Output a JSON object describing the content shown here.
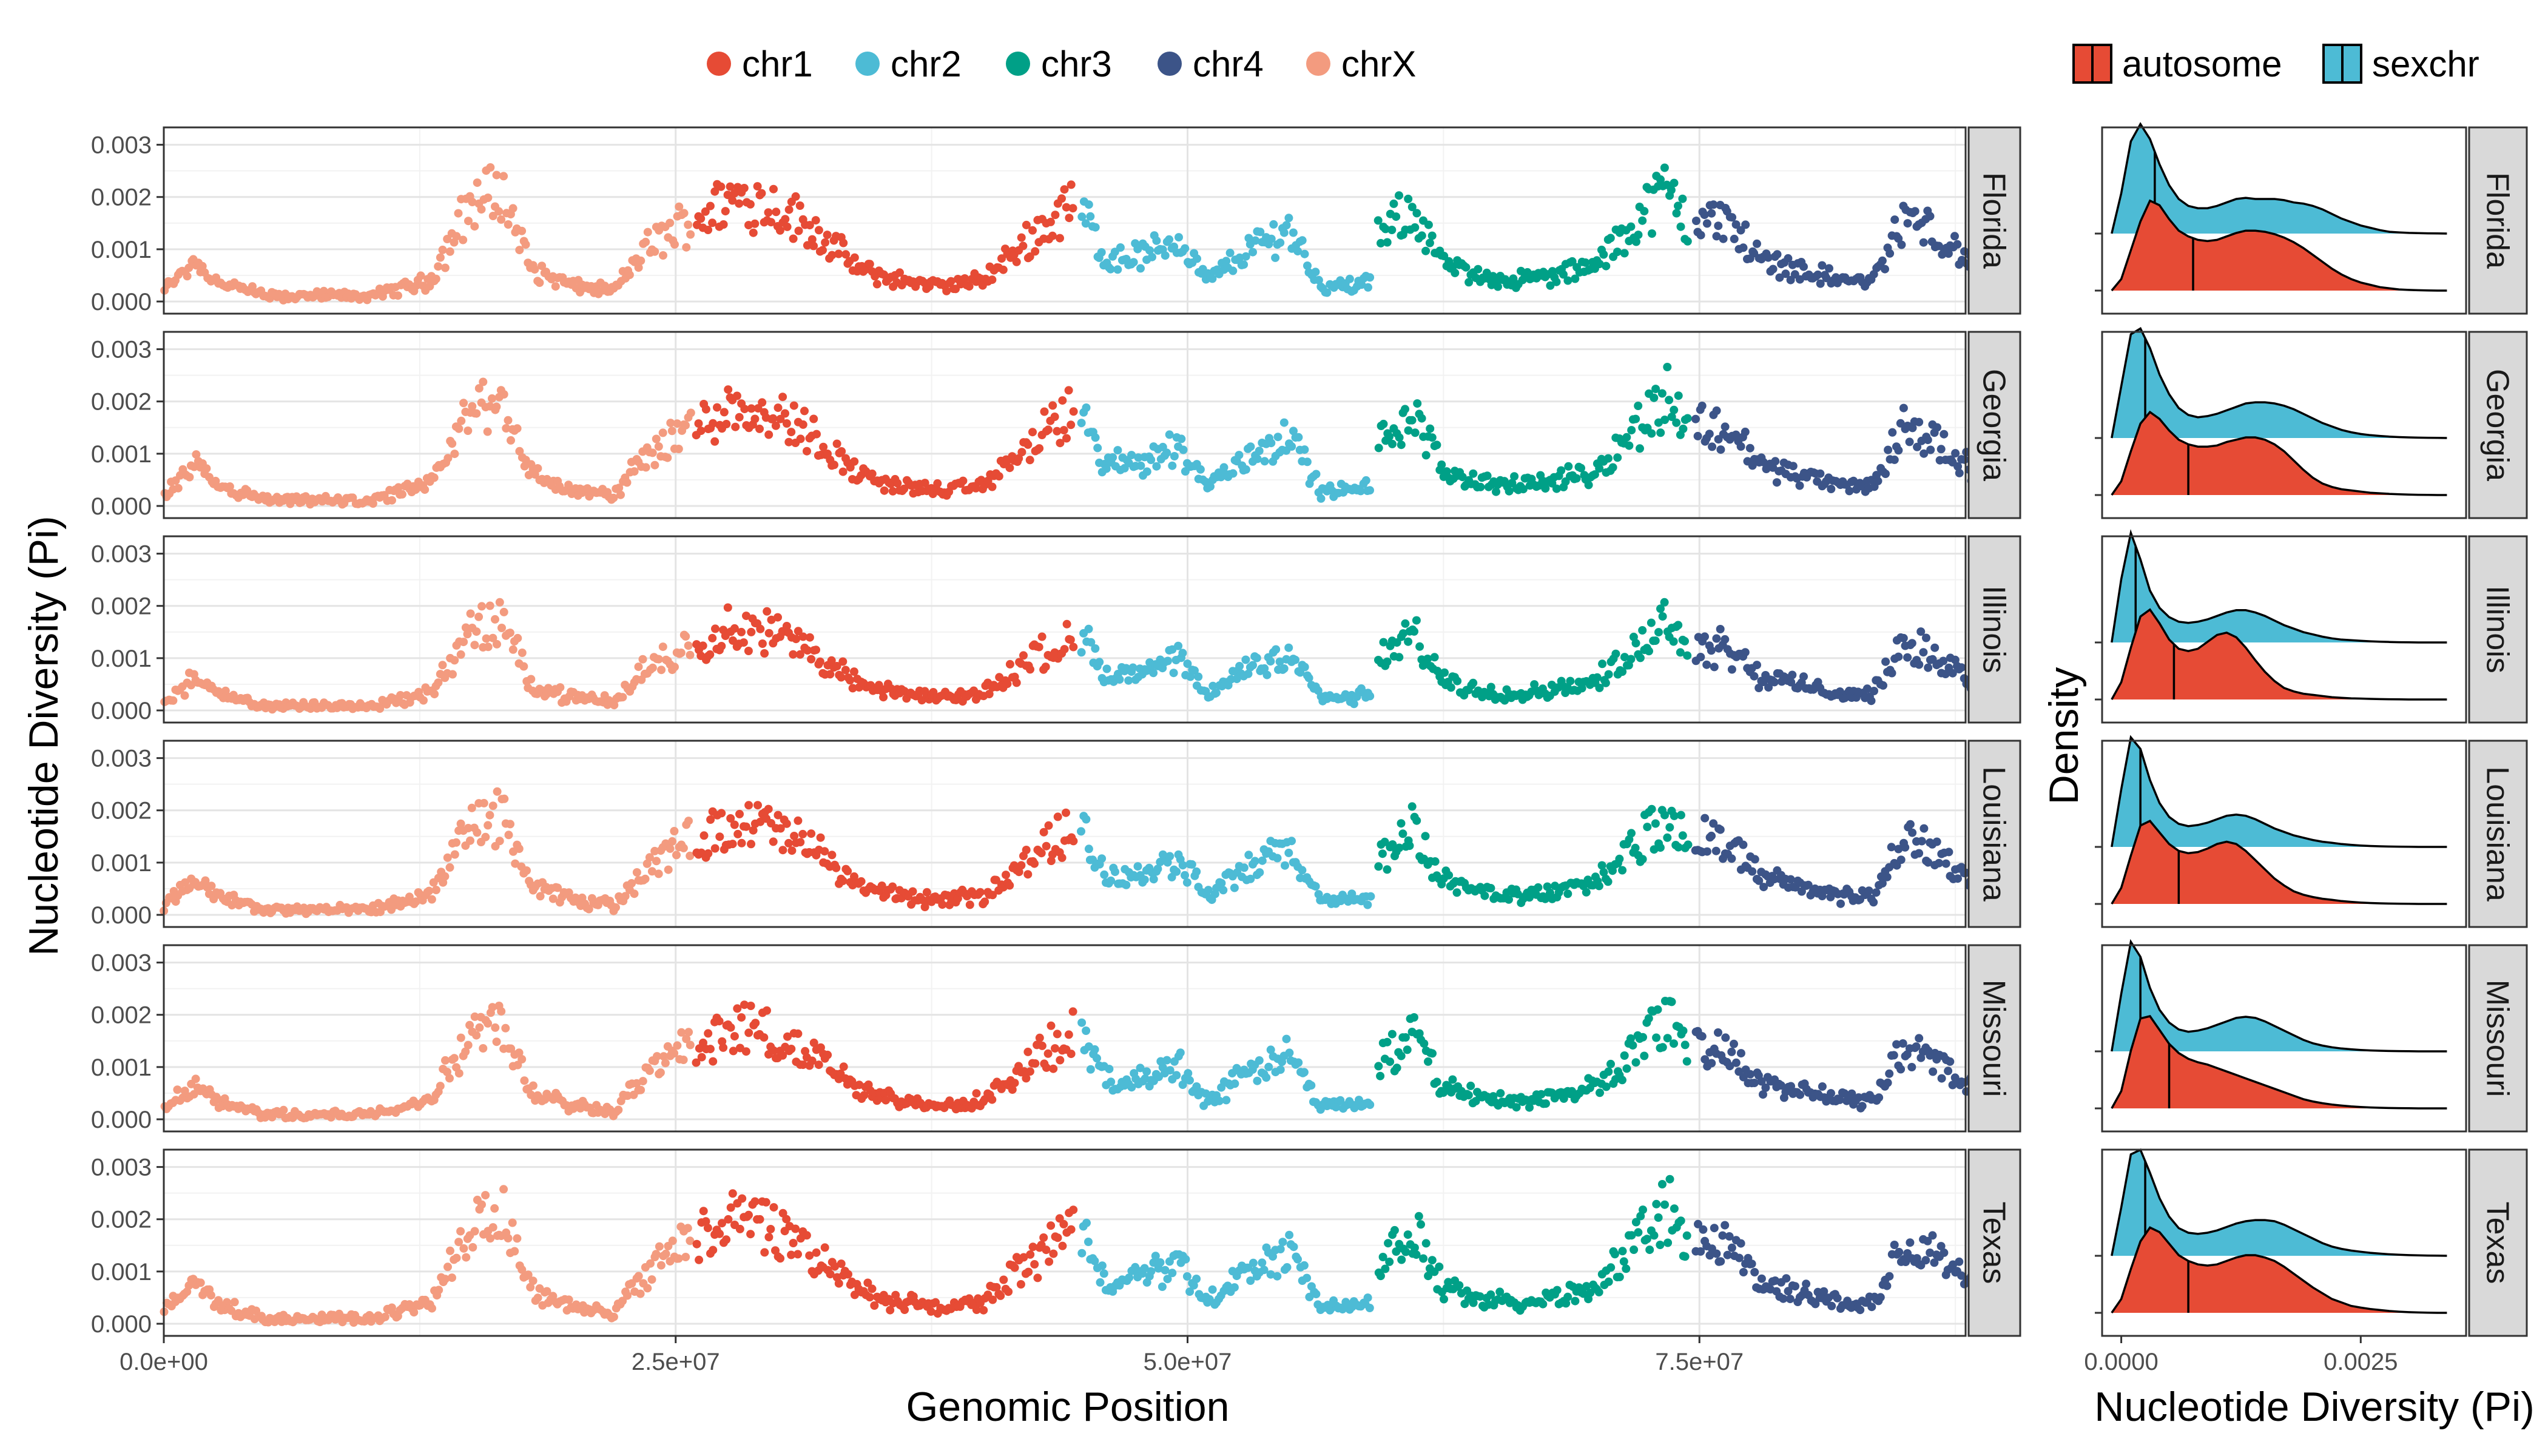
{
  "chart_data": [
    {
      "type": "scatter",
      "xlabel": "Genomic Position",
      "ylabel": "Nucleotide Diversity (Pi)",
      "xlim": [
        0,
        88000000
      ],
      "ylim": [
        0,
        0.0031
      ],
      "x_ticks": [
        0,
        25000000,
        50000000,
        75000000
      ],
      "x_tick_labels": [
        "0.0e+00",
        "2.5e+07",
        "5.0e+07",
        "7.5e+07"
      ],
      "y_ticks": [
        0,
        0.001,
        0.002,
        0.003
      ],
      "y_tick_labels": [
        "0.000",
        "0.001",
        "0.002",
        "0.003"
      ],
      "grid": true,
      "legend_position": "top",
      "facets": [
        "Florida",
        "Georgia",
        "Illinois",
        "Louisiana",
        "Missouri",
        "Texas"
      ],
      "facet_scale": [
        1.0,
        0.97,
        0.8,
        0.9,
        0.88,
        1.0
      ],
      "series": [
        {
          "name": "chrX",
          "color": "#f39b7f",
          "x_range": [
            0,
            25800000
          ],
          "x": [
            0,
            1500000,
            2500000,
            5000000,
            10000000,
            12000000,
            13000000,
            15000000,
            16500000,
            18000000,
            20000000,
            22000000,
            23500000,
            25800000
          ],
          "y": [
            0.0002,
            0.0008,
            0.0004,
            0.0001,
            0.0001,
            0.0003,
            0.0004,
            0.0019,
            0.0021,
            0.0006,
            0.0003,
            0.0002,
            0.001,
            0.0016
          ]
        },
        {
          "name": "chr1",
          "color": "#e64b35",
          "x_range": [
            26000000,
            44500000
          ],
          "x": [
            26000000,
            28000000,
            30000000,
            32000000,
            34000000,
            36000000,
            38000000,
            40000000,
            42000000,
            44500000
          ],
          "y": [
            0.0016,
            0.002,
            0.0018,
            0.0013,
            0.0006,
            0.0004,
            0.0003,
            0.0004,
            0.0011,
            0.0019
          ]
        },
        {
          "name": "chr2",
          "color": "#4dbbd5",
          "x_range": [
            44800000,
            59000000
          ],
          "x": [
            44800000,
            46000000,
            48000000,
            49500000,
            51000000,
            53000000,
            55000000,
            56500000,
            58000000,
            59000000
          ],
          "y": [
            0.0018,
            0.0008,
            0.0009,
            0.0012,
            0.0004,
            0.001,
            0.0014,
            0.0003,
            0.0003,
            0.0004
          ]
        },
        {
          "name": "chr3",
          "color": "#00a087",
          "x_range": [
            59300000,
            74500000
          ],
          "x": [
            59300000,
            61000000,
            62500000,
            64000000,
            66000000,
            68000000,
            70000000,
            72000000,
            73500000,
            74500000
          ],
          "y": [
            0.0012,
            0.0018,
            0.0007,
            0.0005,
            0.0004,
            0.0005,
            0.0007,
            0.0016,
            0.0022,
            0.0014
          ]
        },
        {
          "name": "chr4",
          "color": "#3c5488",
          "x_range": [
            74800000,
            89000000
          ],
          "x": [
            74800000,
            76500000,
            78000000,
            80000000,
            82000000,
            83500000,
            85000000,
            86500000,
            88000000,
            89000000
          ],
          "y": [
            0.0016,
            0.0015,
            0.0008,
            0.0006,
            0.0004,
            0.0004,
            0.0016,
            0.0013,
            0.0008,
            0.0005
          ]
        }
      ]
    },
    {
      "type": "area",
      "subtype": "density-ridgeline",
      "xlabel": "Nucleotide Diversity (Pi)",
      "ylabel": "Density",
      "xlim": [
        -0.0002,
        0.0036
      ],
      "x_ticks": [
        0,
        0.0025
      ],
      "x_tick_labels": [
        "0.0000",
        "0.0025"
      ],
      "grid": false,
      "legend_position": "top-right",
      "facets": [
        "Florida",
        "Georgia",
        "Illinois",
        "Louisiana",
        "Missouri",
        "Texas"
      ],
      "x": [
        -0.0001,
        0.0,
        0.0001,
        0.0002,
        0.0003,
        0.0004,
        0.0005,
        0.0006,
        0.0007,
        0.0008,
        0.0009,
        0.001,
        0.0011,
        0.0012,
        0.0013,
        0.0014,
        0.0015,
        0.0016,
        0.0017,
        0.0018,
        0.0019,
        0.002,
        0.0021,
        0.0022,
        0.0023,
        0.0024,
        0.0025,
        0.0026,
        0.0027,
        0.0028,
        0.0029,
        0.003,
        0.0031,
        0.0032,
        0.0033,
        0.0034
      ],
      "series": [
        {
          "name": "sexchr",
          "color": "#4dbbd5",
          "facet": "Florida",
          "median": 0.00035,
          "values": [
            0,
            0.35,
            0.8,
            0.95,
            0.82,
            0.6,
            0.42,
            0.3,
            0.24,
            0.22,
            0.22,
            0.24,
            0.27,
            0.3,
            0.31,
            0.3,
            0.3,
            0.3,
            0.29,
            0.27,
            0.26,
            0.24,
            0.21,
            0.17,
            0.13,
            0.1,
            0.07,
            0.05,
            0.03,
            0.015,
            0.01,
            0.006,
            0.004,
            0.002,
            0.001,
            0
          ]
        },
        {
          "name": "autosome",
          "color": "#e64b35",
          "facet": "Florida",
          "median": 0.00075,
          "values": [
            0,
            0.1,
            0.35,
            0.6,
            0.78,
            0.74,
            0.62,
            0.52,
            0.47,
            0.44,
            0.43,
            0.44,
            0.47,
            0.5,
            0.52,
            0.52,
            0.51,
            0.49,
            0.46,
            0.42,
            0.37,
            0.31,
            0.25,
            0.19,
            0.14,
            0.1,
            0.07,
            0.05,
            0.03,
            0.02,
            0.01,
            0.006,
            0.003,
            0.001,
            0,
            0
          ]
        },
        {
          "name": "sexchr",
          "color": "#4dbbd5",
          "facet": "Georgia",
          "median": 0.00025,
          "values": [
            0,
            0.45,
            0.9,
            0.95,
            0.78,
            0.55,
            0.38,
            0.26,
            0.2,
            0.18,
            0.19,
            0.21,
            0.24,
            0.27,
            0.3,
            0.31,
            0.31,
            0.3,
            0.28,
            0.25,
            0.21,
            0.17,
            0.13,
            0.1,
            0.07,
            0.05,
            0.035,
            0.025,
            0.018,
            0.012,
            0.008,
            0.005,
            0.003,
            0.002,
            0.001,
            0
          ]
        },
        {
          "name": "autosome",
          "color": "#e64b35",
          "facet": "Georgia",
          "median": 0.0007,
          "values": [
            0,
            0.12,
            0.38,
            0.62,
            0.72,
            0.66,
            0.56,
            0.48,
            0.44,
            0.42,
            0.42,
            0.43,
            0.46,
            0.48,
            0.5,
            0.5,
            0.48,
            0.44,
            0.38,
            0.3,
            0.22,
            0.15,
            0.1,
            0.07,
            0.05,
            0.04,
            0.03,
            0.02,
            0.015,
            0.01,
            0.007,
            0.004,
            0.002,
            0.001,
            0,
            0
          ]
        },
        {
          "name": "sexchr",
          "color": "#4dbbd5",
          "facet": "Illinois",
          "median": 0.00015,
          "values": [
            0,
            0.55,
            0.95,
            0.72,
            0.45,
            0.3,
            0.22,
            0.18,
            0.17,
            0.18,
            0.2,
            0.23,
            0.26,
            0.28,
            0.28,
            0.26,
            0.23,
            0.19,
            0.15,
            0.12,
            0.09,
            0.07,
            0.05,
            0.035,
            0.025,
            0.02,
            0.015,
            0.01,
            0.007,
            0.004,
            0.002,
            0.001,
            0,
            0,
            0,
            0
          ]
        },
        {
          "name": "autosome",
          "color": "#e64b35",
          "facet": "Illinois",
          "median": 0.00055,
          "values": [
            0,
            0.15,
            0.45,
            0.72,
            0.78,
            0.66,
            0.52,
            0.44,
            0.42,
            0.44,
            0.5,
            0.56,
            0.58,
            0.54,
            0.45,
            0.34,
            0.24,
            0.16,
            0.1,
            0.07,
            0.05,
            0.04,
            0.03,
            0.02,
            0.015,
            0.01,
            0.008,
            0.005,
            0.003,
            0.002,
            0.001,
            0,
            0,
            0,
            0,
            0
          ]
        },
        {
          "name": "sexchr",
          "color": "#4dbbd5",
          "facet": "Louisiana",
          "median": 0.0002,
          "values": [
            0,
            0.5,
            0.95,
            0.85,
            0.58,
            0.38,
            0.26,
            0.2,
            0.18,
            0.19,
            0.21,
            0.24,
            0.27,
            0.28,
            0.27,
            0.24,
            0.2,
            0.16,
            0.13,
            0.1,
            0.08,
            0.06,
            0.045,
            0.035,
            0.025,
            0.018,
            0.012,
            0.008,
            0.005,
            0.003,
            0.002,
            0.001,
            0,
            0,
            0,
            0
          ]
        },
        {
          "name": "autosome",
          "color": "#e64b35",
          "facet": "Louisiana",
          "median": 0.0006,
          "values": [
            0,
            0.14,
            0.42,
            0.68,
            0.72,
            0.62,
            0.52,
            0.46,
            0.44,
            0.45,
            0.48,
            0.52,
            0.54,
            0.52,
            0.46,
            0.38,
            0.3,
            0.22,
            0.16,
            0.11,
            0.08,
            0.06,
            0.045,
            0.035,
            0.025,
            0.018,
            0.012,
            0.008,
            0.005,
            0.003,
            0.002,
            0.001,
            0,
            0,
            0,
            0
          ]
        },
        {
          "name": "sexchr",
          "color": "#4dbbd5",
          "facet": "Missouri",
          "median": 0.0002,
          "values": [
            0,
            0.5,
            0.95,
            0.82,
            0.55,
            0.36,
            0.25,
            0.19,
            0.17,
            0.18,
            0.2,
            0.23,
            0.26,
            0.29,
            0.3,
            0.29,
            0.26,
            0.22,
            0.18,
            0.14,
            0.1,
            0.07,
            0.05,
            0.035,
            0.025,
            0.018,
            0.012,
            0.008,
            0.005,
            0.003,
            0.002,
            0.001,
            0,
            0,
            0,
            0
          ]
        },
        {
          "name": "autosome",
          "color": "#e64b35",
          "facet": "Missouri",
          "median": 0.0005,
          "values": [
            0,
            0.15,
            0.5,
            0.78,
            0.8,
            0.68,
            0.56,
            0.48,
            0.43,
            0.4,
            0.38,
            0.35,
            0.32,
            0.29,
            0.26,
            0.23,
            0.2,
            0.17,
            0.14,
            0.11,
            0.08,
            0.06,
            0.045,
            0.033,
            0.024,
            0.017,
            0.012,
            0.008,
            0.005,
            0.003,
            0.002,
            0.001,
            0,
            0,
            0,
            0
          ]
        },
        {
          "name": "sexchr",
          "color": "#4dbbd5",
          "facet": "Texas",
          "median": 0.00025,
          "values": [
            0,
            0.42,
            0.88,
            0.92,
            0.72,
            0.5,
            0.34,
            0.24,
            0.2,
            0.19,
            0.2,
            0.22,
            0.25,
            0.28,
            0.3,
            0.31,
            0.31,
            0.3,
            0.27,
            0.23,
            0.19,
            0.15,
            0.11,
            0.08,
            0.06,
            0.045,
            0.035,
            0.026,
            0.019,
            0.013,
            0.009,
            0.006,
            0.004,
            0.002,
            0.001,
            0
          ]
        },
        {
          "name": "autosome",
          "color": "#e64b35",
          "facet": "Texas",
          "median": 0.0007,
          "values": [
            0,
            0.12,
            0.38,
            0.62,
            0.74,
            0.7,
            0.6,
            0.5,
            0.45,
            0.42,
            0.41,
            0.42,
            0.45,
            0.48,
            0.5,
            0.5,
            0.48,
            0.45,
            0.4,
            0.34,
            0.28,
            0.22,
            0.17,
            0.12,
            0.09,
            0.06,
            0.045,
            0.033,
            0.024,
            0.016,
            0.01,
            0.006,
            0.003,
            0.001,
            0,
            0
          ]
        }
      ]
    }
  ],
  "legend_left": [
    {
      "label": "chr1",
      "color": "#e64b35"
    },
    {
      "label": "chr2",
      "color": "#4dbbd5"
    },
    {
      "label": "chr3",
      "color": "#00a087"
    },
    {
      "label": "chr4",
      "color": "#3c5488"
    },
    {
      "label": "chrX",
      "color": "#f39b7f"
    }
  ],
  "legend_right": [
    {
      "label": "autosome",
      "color": "#e64b35"
    },
    {
      "label": "sexchr",
      "color": "#4dbbd5"
    }
  ]
}
